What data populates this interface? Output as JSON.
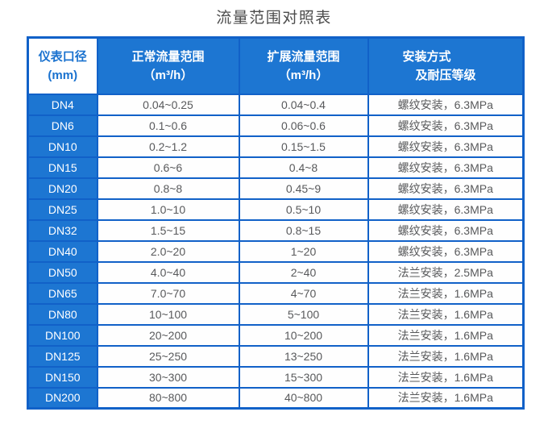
{
  "title": "流量范围对照表",
  "header": {
    "col1": [
      "仪表口径",
      "(mm)"
    ],
    "col2": [
      "正常流量范围",
      "（m³/h）"
    ],
    "col3": [
      "扩展流量范围",
      "（m³/h）"
    ],
    "col4": [
      "安装方式",
      "及耐压等级"
    ]
  },
  "colors": {
    "cell_blue": "#1d76d2",
    "border_blue": "#1161c8",
    "header_text": "#ffffff",
    "corner_text": "#1a72cf",
    "data_text": "#58595b",
    "title_text": "#4c4c4c"
  },
  "chart_data": {
    "type": "table",
    "title": "流量范围对照表",
    "columns": [
      "仪表口径 (mm)",
      "正常流量范围（m³/h）",
      "扩展流量范围（m³/h）",
      "安装方式及耐压等级"
    ],
    "rows": [
      [
        "DN4",
        "0.04~0.25",
        "0.04~0.4",
        "螺纹安装，6.3MPa"
      ],
      [
        "DN6",
        "0.1~0.6",
        "0.06~0.6",
        "螺纹安装，6.3MPa"
      ],
      [
        "DN10",
        "0.2~1.2",
        "0.15~1.5",
        "螺纹安装，6.3MPa"
      ],
      [
        "DN15",
        "0.6~6",
        "0.4~8",
        "螺纹安装，6.3MPa"
      ],
      [
        "DN20",
        "0.8~8",
        "0.45~9",
        "螺纹安装，6.3MPa"
      ],
      [
        "DN25",
        "1.0~10",
        "0.5~10",
        "螺纹安装，6.3MPa"
      ],
      [
        "DN32",
        "1.5~15",
        "0.8~15",
        "螺纹安装，6.3MPa"
      ],
      [
        "DN40",
        "2.0~20",
        "1~20",
        "螺纹安装，6.3MPa"
      ],
      [
        "DN50",
        "4.0~40",
        "2~40",
        "法兰安装，2.5MPa"
      ],
      [
        "DN65",
        "7.0~70",
        "4~70",
        "法兰安装，1.6MPa"
      ],
      [
        "DN80",
        "10~100",
        "5~100",
        "法兰安装，1.6MPa"
      ],
      [
        "DN100",
        "20~200",
        "10~200",
        "法兰安装，1.6MPa"
      ],
      [
        "DN125",
        "25~250",
        "13~250",
        "法兰安装，1.6MPa"
      ],
      [
        "DN150",
        "30~300",
        "15~300",
        "法兰安装，1.6MPa"
      ],
      [
        "DN200",
        "80~800",
        "40~800",
        "法兰安装，1.6MPa"
      ]
    ]
  }
}
